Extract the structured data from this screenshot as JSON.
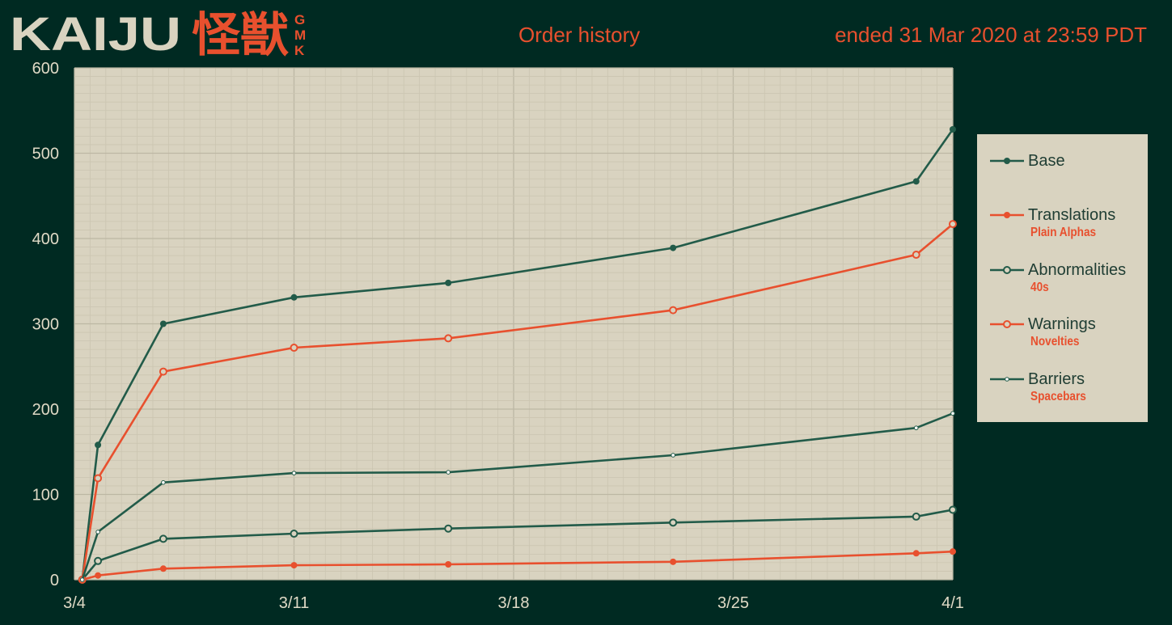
{
  "header": {
    "logo_text": "KAIJU",
    "logo_kanji": "怪獣",
    "logo_side": "GMK",
    "title": "Order history",
    "subtitle": "ended 31 Mar 2020 at 23:59 PDT"
  },
  "colors": {
    "background": "#002a22",
    "plot_background": "#d9d3c0",
    "green": "#225b49",
    "orange": "#e8502e",
    "tick_text": "#e0dac6"
  },
  "chart_data": {
    "type": "line",
    "title": "Order history",
    "subtitle": "ended 31 Mar 2020 at 23:59 PDT",
    "xlabel": "",
    "ylabel": "",
    "x_range": [
      "2020-03-04",
      "2020-04-01"
    ],
    "ylim": [
      0,
      600
    ],
    "x_ticks": [
      {
        "date": "2020-03-04",
        "label": "3/4"
      },
      {
        "date": "2020-03-11",
        "label": "3/11"
      },
      {
        "date": "2020-03-18",
        "label": "3/18"
      },
      {
        "date": "2020-03-25",
        "label": "3/25"
      },
      {
        "date": "2020-04-01",
        "label": "4/1"
      }
    ],
    "y_ticks": [
      0,
      100,
      200,
      300,
      400,
      500,
      600
    ],
    "grid": true,
    "legend_position": "right",
    "x": [
      "2020-03-04T06:00",
      "2020-03-04T18:00",
      "2020-03-06T20:00",
      "2020-03-11T00:00",
      "2020-03-15T22:00",
      "2020-03-23T02:00",
      "2020-03-30T20:00",
      "2020-03-31T23:59"
    ],
    "series": [
      {
        "name": "Base",
        "subtitle": "",
        "color": "#225b49",
        "marker": "filled",
        "values": [
          0,
          158,
          300,
          331,
          348,
          389,
          467,
          528
        ]
      },
      {
        "name": "Translations",
        "subtitle": "Plain Alphas",
        "color": "#e8502e",
        "marker": "filled",
        "values": [
          0,
          5,
          13,
          17,
          18,
          21,
          31,
          33
        ]
      },
      {
        "name": "Abnormalities",
        "subtitle": "40s",
        "color": "#225b49",
        "marker": "hollow",
        "values": [
          0,
          22,
          48,
          54,
          60,
          67,
          74,
          82
        ]
      },
      {
        "name": "Warnings",
        "subtitle": "Novelties",
        "color": "#e8502e",
        "marker": "hollow",
        "values": [
          0,
          119,
          244,
          272,
          283,
          316,
          381,
          417
        ]
      },
      {
        "name": "Barriers",
        "subtitle": "Spacebars",
        "color": "#225b49",
        "marker": "dot",
        "dashed": true,
        "values": [
          0,
          56,
          114,
          125,
          126,
          146,
          178,
          195
        ]
      }
    ]
  }
}
